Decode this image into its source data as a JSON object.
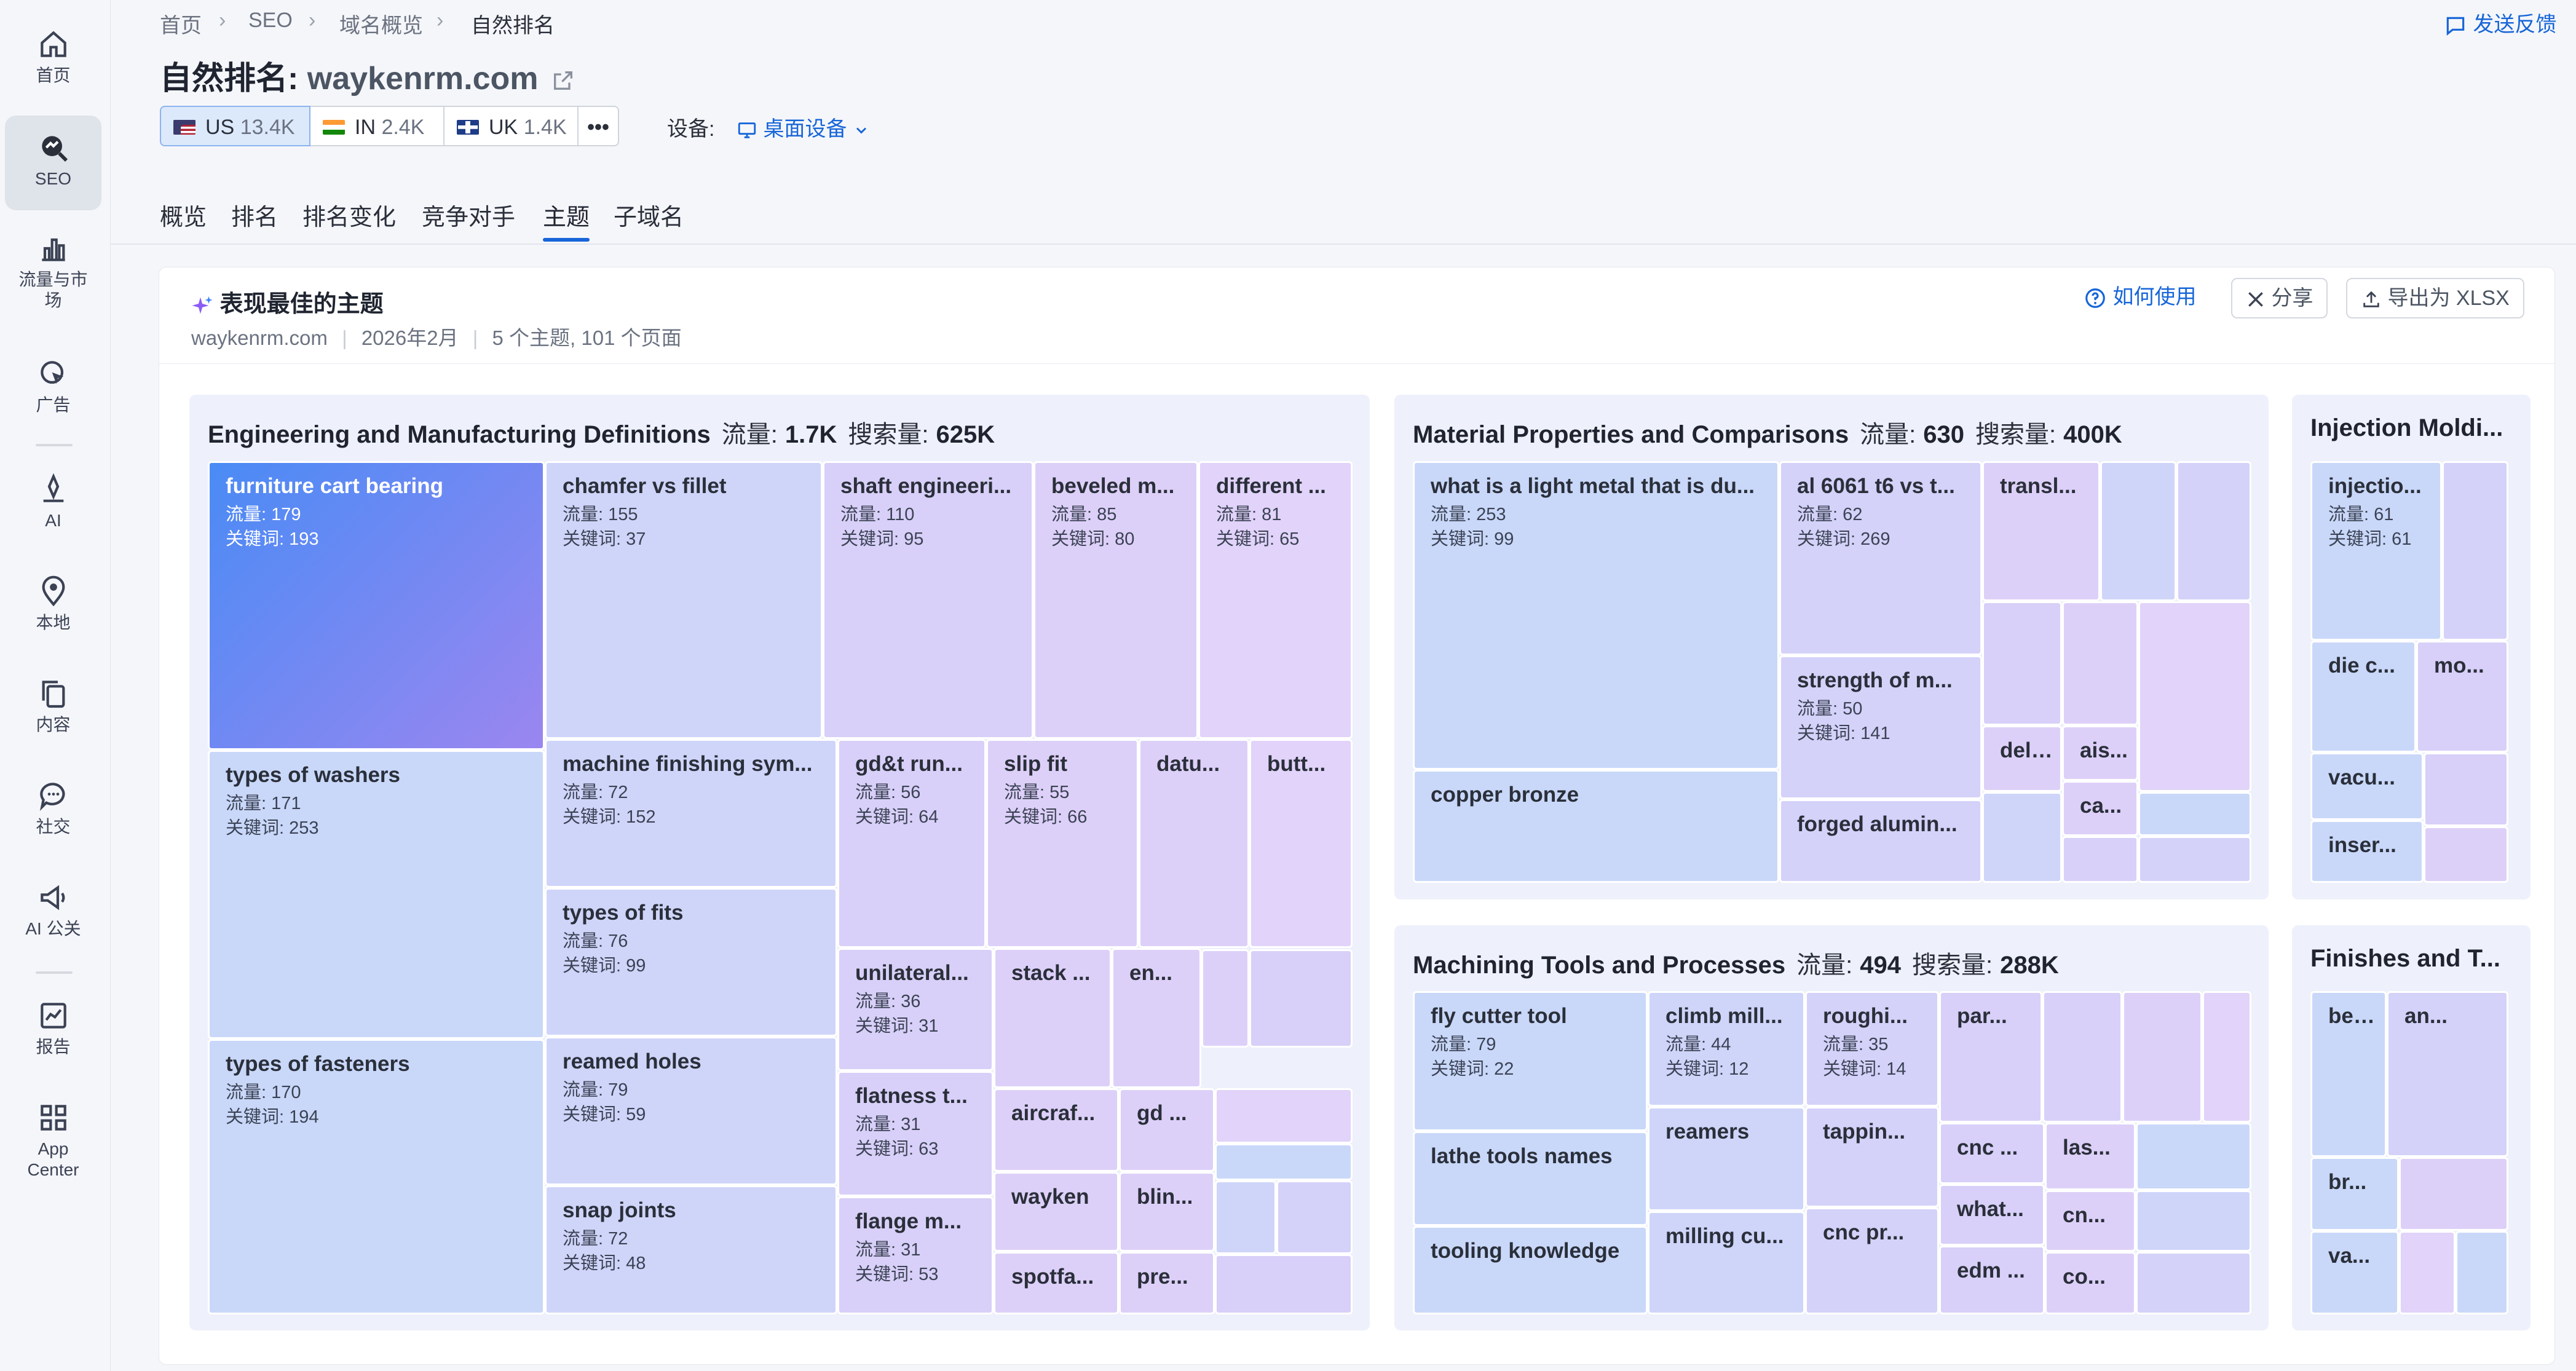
{
  "sidebar": {
    "items": [
      {
        "label": "首页",
        "icon": "home-icon"
      },
      {
        "label": "SEO",
        "icon": "seo-icon",
        "active": true
      },
      {
        "label": "流量与市场",
        "icon": "bar-chart-icon"
      },
      {
        "label": "广告",
        "icon": "ads-cursor-icon"
      },
      {
        "label": "AI",
        "icon": "ai-icon"
      },
      {
        "label": "本地",
        "icon": "location-pin-icon"
      },
      {
        "label": "内容",
        "icon": "content-icon"
      },
      {
        "label": "社交",
        "icon": "social-chat-icon"
      },
      {
        "label": "AI 公关",
        "icon": "megaphone-icon"
      },
      {
        "label": "报告",
        "icon": "report-icon"
      },
      {
        "label": "App Center",
        "icon": "app-grid-icon"
      }
    ]
  },
  "breadcrumb": [
    "首页",
    "SEO",
    "域名概览",
    "自然排名"
  ],
  "feedback": "发送反馈",
  "title": {
    "prefix": "自然排名:",
    "domain": "waykenrm.com"
  },
  "databases": [
    {
      "code": "US",
      "count": "13.4K",
      "selected": true
    },
    {
      "code": "IN",
      "count": "2.4K"
    },
    {
      "code": "UK",
      "count": "1.4K"
    }
  ],
  "more_label": "•••",
  "device": {
    "label": "设备:",
    "value": "桌面设备"
  },
  "tabs": [
    "概览",
    "排名",
    "排名变化",
    "竞争对手",
    "主题",
    "子域名"
  ],
  "active_tab": "主题",
  "card": {
    "title": "表现最佳的主题",
    "domain": "waykenrm.com",
    "date": "2026年2月",
    "summary": "5 个主题, 101 个页面",
    "howto": "如何使用",
    "share": "分享",
    "export": "导出为 XLSX"
  },
  "colors": {
    "accent": "#1665d8",
    "highlight_from": "#4a8bf5",
    "highlight_to": "#9b86f0",
    "tile_blue": "#c9d8f9",
    "tile_violet": "#ddd0f8"
  },
  "chart_data": {
    "type": "treemap",
    "labels": {
      "traffic": "流量",
      "search_volume": "搜索量",
      "tile_traffic": "流量:",
      "tile_keywords": "关键词:"
    },
    "groups": [
      {
        "name": "Engineering and Manufacturing Definitions",
        "traffic": "1.7K",
        "search_volume": "625K",
        "tiles": [
          {
            "name": "furniture cart bearing",
            "traffic": 179,
            "keywords": 193
          },
          {
            "name": "chamfer vs fillet",
            "traffic": 155,
            "keywords": 37
          },
          {
            "name": "shaft engineeri...",
            "traffic": 110,
            "keywords": 95
          },
          {
            "name": "beveled m...",
            "traffic": 85,
            "keywords": 80
          },
          {
            "name": "different ...",
            "traffic": 81,
            "keywords": 65
          },
          {
            "name": "types of washers",
            "traffic": 171,
            "keywords": 253
          },
          {
            "name": "machine finishing sym...",
            "traffic": 72,
            "keywords": 152
          },
          {
            "name": "gd&t run...",
            "traffic": 56,
            "keywords": 64
          },
          {
            "name": "slip fit",
            "traffic": 55,
            "keywords": 66
          },
          {
            "name": "datu..."
          },
          {
            "name": "butt..."
          },
          {
            "name": "types of fits",
            "traffic": 76,
            "keywords": 99
          },
          {
            "name": "unilateral...",
            "traffic": 36,
            "keywords": 31
          },
          {
            "name": "stack ..."
          },
          {
            "name": "en..."
          },
          {
            "name": "types of fasteners",
            "traffic": 170,
            "keywords": 194
          },
          {
            "name": "reamed holes",
            "traffic": 79,
            "keywords": 59
          },
          {
            "name": "flatness t...",
            "traffic": 31,
            "keywords": 63
          },
          {
            "name": "aircraf..."
          },
          {
            "name": "gd ..."
          },
          {
            "name": "wayken"
          },
          {
            "name": "blin..."
          },
          {
            "name": "snap joints",
            "traffic": 72,
            "keywords": 48
          },
          {
            "name": "flange m...",
            "traffic": 31,
            "keywords": 53
          },
          {
            "name": "spotfa..."
          },
          {
            "name": "pre..."
          }
        ]
      },
      {
        "name": "Material Properties and Comparisons",
        "traffic": "630",
        "search_volume": "400K",
        "tiles": [
          {
            "name": "what is a light metal that is du...",
            "traffic": 253,
            "keywords": 99
          },
          {
            "name": "al 6061 t6 vs t...",
            "traffic": 62,
            "keywords": 269
          },
          {
            "name": "transl..."
          },
          {
            "name": "strength of m...",
            "traffic": 50,
            "keywords": 141
          },
          {
            "name": "delri..."
          },
          {
            "name": "ais..."
          },
          {
            "name": "ca..."
          },
          {
            "name": "copper bronze"
          },
          {
            "name": "forged alumin..."
          }
        ]
      },
      {
        "name": "Injection Moldi...",
        "tiles": [
          {
            "name": "injectio...",
            "traffic": 61,
            "keywords": 61
          },
          {
            "name": "die c..."
          },
          {
            "name": "mo..."
          },
          {
            "name": "vacu..."
          },
          {
            "name": "inser..."
          }
        ]
      },
      {
        "name": "Machining Tools and Processes",
        "traffic": "494",
        "search_volume": "288K",
        "tiles": [
          {
            "name": "fly cutter tool",
            "traffic": 79,
            "keywords": 22
          },
          {
            "name": "climb mill...",
            "traffic": 44,
            "keywords": 12
          },
          {
            "name": "roughi...",
            "traffic": 35,
            "keywords": 14
          },
          {
            "name": "par..."
          },
          {
            "name": "lathe tools names"
          },
          {
            "name": "reamers"
          },
          {
            "name": "tappin..."
          },
          {
            "name": "cnc ..."
          },
          {
            "name": "las..."
          },
          {
            "name": "tooling knowledge"
          },
          {
            "name": "milling cu..."
          },
          {
            "name": "cnc pr..."
          },
          {
            "name": "what..."
          },
          {
            "name": "cn..."
          },
          {
            "name": "edm ..."
          },
          {
            "name": "co..."
          }
        ]
      },
      {
        "name": "Finishes and T...",
        "tiles": [
          {
            "name": "bead ..."
          },
          {
            "name": "an..."
          },
          {
            "name": "br..."
          },
          {
            "name": "va..."
          }
        ]
      }
    ]
  }
}
